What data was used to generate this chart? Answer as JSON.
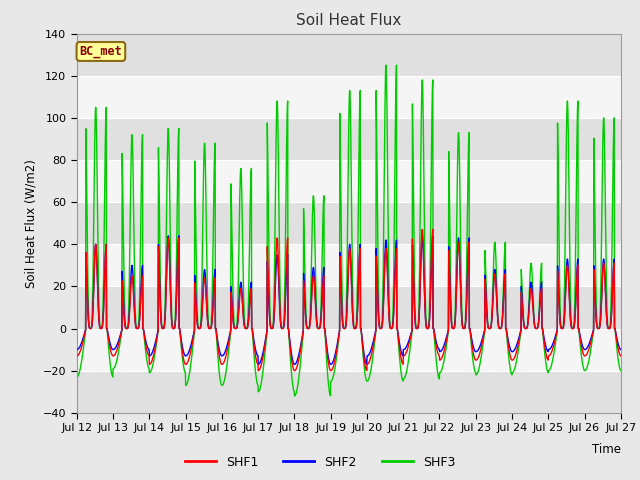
{
  "title": "Soil Heat Flux",
  "ylabel": "Soil Heat Flux (W/m2)",
  "xlabel": "Time",
  "ylim": [
    -40,
    140
  ],
  "yticks": [
    -40,
    -20,
    0,
    20,
    40,
    60,
    80,
    100,
    120,
    140
  ],
  "xtick_labels": [
    "Jul 12",
    "Jul 13",
    "Jul 14",
    "Jul 15",
    "Jul 16",
    "Jul 17",
    "Jul 18",
    "Jul 19",
    "Jul 20",
    "Jul 21",
    "Jul 22",
    "Jul 23",
    "Jul 24",
    "Jul 25",
    "Jul 26",
    "Jul 27"
  ],
  "site_label": "BC_met",
  "line_colors": {
    "SHF1": "#ff0000",
    "SHF2": "#0000ff",
    "SHF3": "#00cc00"
  },
  "legend_labels": [
    "SHF1",
    "SHF2",
    "SHF3"
  ],
  "fig_bg": "#e8e8e8",
  "plot_bg": "#f5f5f5",
  "band_light": "#f5f5f5",
  "band_dark": "#e0e0e0",
  "shf1_peaks": [
    40,
    25,
    43,
    24,
    19,
    43,
    25,
    38,
    38,
    47,
    41,
    26,
    19,
    30,
    31,
    28
  ],
  "shf2_peaks": [
    40,
    30,
    44,
    28,
    22,
    35,
    29,
    40,
    42,
    44,
    43,
    28,
    22,
    33,
    33,
    31
  ],
  "shf3_peaks": [
    105,
    92,
    95,
    88,
    76,
    108,
    63,
    113,
    125,
    118,
    93,
    41,
    31,
    108,
    100,
    95
  ],
  "shf1_troughs": [
    -13,
    -13,
    -17,
    -17,
    -17,
    -20,
    -20,
    -20,
    -17,
    -13,
    -15,
    -15,
    -15,
    -13,
    -13,
    -10
  ],
  "shf2_troughs": [
    -10,
    -10,
    -13,
    -13,
    -13,
    -17,
    -17,
    -17,
    -13,
    -10,
    -11,
    -11,
    -11,
    -10,
    -10,
    -8
  ],
  "shf3_troughs": [
    -23,
    -19,
    -21,
    -27,
    -27,
    -30,
    -32,
    -25,
    -25,
    -24,
    -21,
    -22,
    -21,
    -20,
    -20,
    -15
  ]
}
